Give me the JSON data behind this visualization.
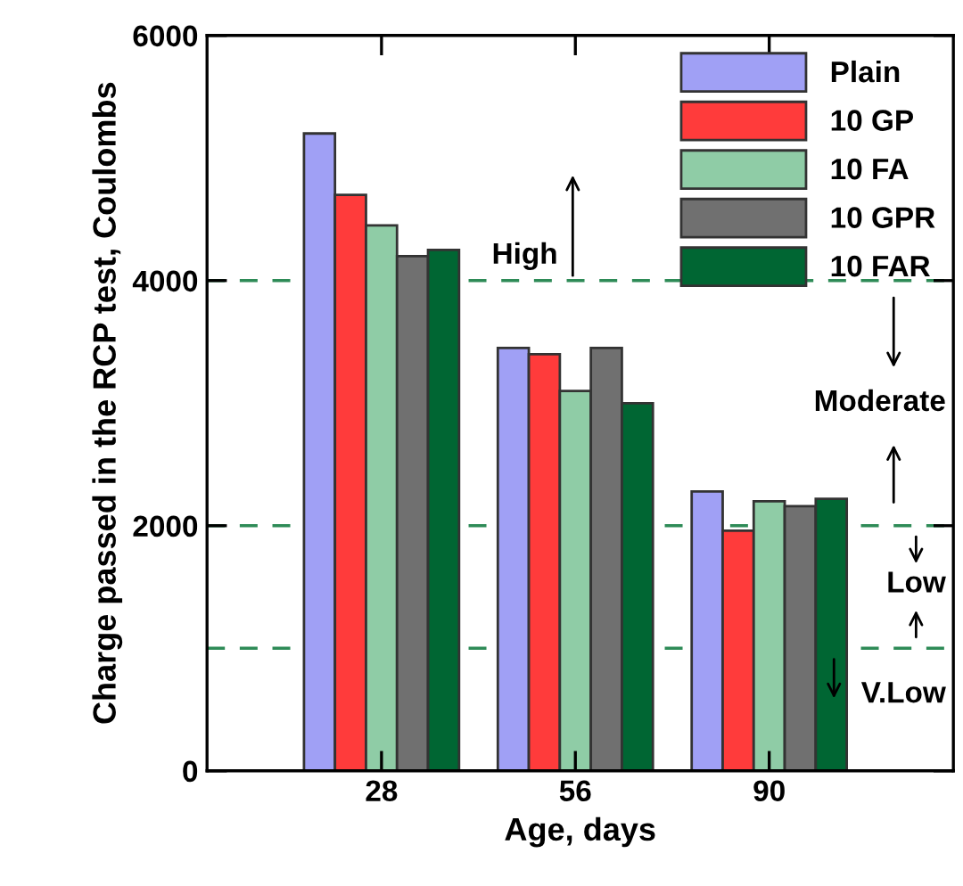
{
  "chart_data": {
    "type": "bar",
    "xlabel": "Age, days",
    "ylabel": "Charge passed in the RCP test, Coulombs",
    "categories": [
      "28",
      "56",
      "90"
    ],
    "series": [
      {
        "name": "Plain",
        "color": "#a0a0f5",
        "values": [
          5200,
          3450,
          2280
        ]
      },
      {
        "name": "10 GP",
        "color": "#ff3b3b",
        "values": [
          4700,
          3400,
          1960
        ]
      },
      {
        "name": "10 FA",
        "color": "#8fcca6",
        "values": [
          4450,
          3100,
          2200
        ]
      },
      {
        "name": "10 GPR",
        "color": "#707070",
        "values": [
          4200,
          3450,
          2160
        ]
      },
      {
        "name": "10 FAR",
        "color": "#006633",
        "values": [
          4250,
          3000,
          2220
        ]
      }
    ],
    "ylim": [
      0,
      6000
    ],
    "yticks": [
      0,
      2000,
      4000,
      6000
    ],
    "ref_lines": [
      {
        "axis": "y",
        "value": 4000,
        "color": "#2e8b57",
        "line_style": "dashed"
      },
      {
        "axis": "y",
        "value": 2000,
        "color": "#2e8b57",
        "line_style": "dashed"
      },
      {
        "axis": "y",
        "value": 1000,
        "color": "#2e8b57",
        "line_style": "dashed"
      }
    ],
    "annotations": [
      "High",
      "Moderate",
      "Low",
      "V.Low"
    ],
    "legend": "top right",
    "grid": false
  }
}
